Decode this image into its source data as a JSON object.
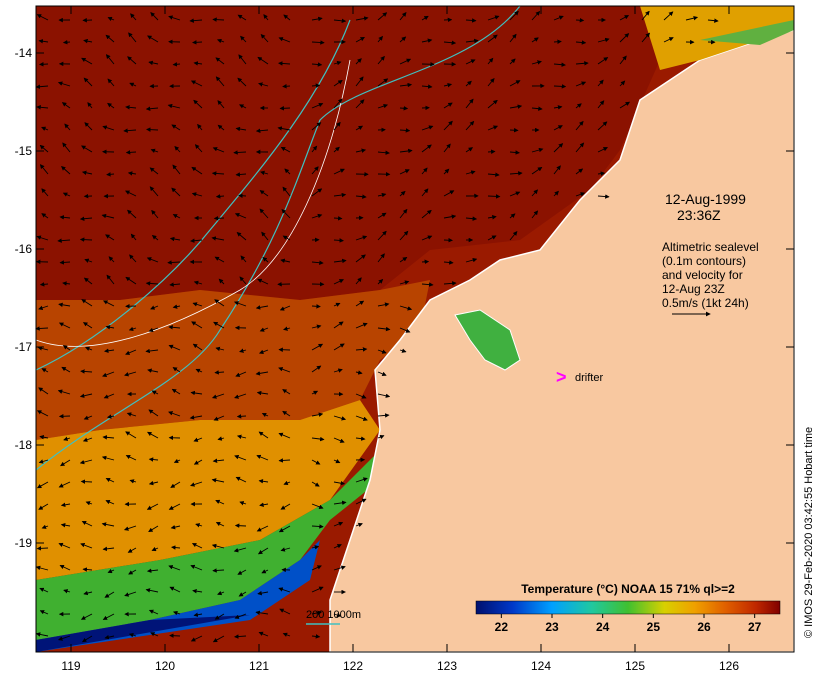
{
  "map": {
    "date": "12-Aug-1999",
    "time": "23:36Z",
    "altimetry_note": [
      "Altimetric sealevel",
      "(0.1m contours)",
      "and velocity for",
      "12-Aug 23Z",
      "0.5m/s (1kt 24h)"
    ],
    "drifter_label": "drifter",
    "bathy_label": "200  1000m",
    "credit": "© IMOS 29-Feb-2020 03:42:55 Hobart time",
    "colors": {
      "land": "#f8c8a0",
      "warm": "#8b1200",
      "drifter": "#ff00ff",
      "bathy": "#40c0c0"
    }
  },
  "axes": {
    "lat_ticks": [
      "-14",
      "-15",
      "-16",
      "-17",
      "-18",
      "-19"
    ],
    "lon_ticks": [
      "119",
      "120",
      "121",
      "122",
      "123",
      "124",
      "125",
      "126"
    ]
  },
  "colorbar": {
    "title": "Temperature (°C) NOAA 15 71% ql>=2",
    "ticks": [
      "22",
      "23",
      "24",
      "25",
      "26",
      "27"
    ],
    "range": [
      21.5,
      27.5
    ]
  }
}
